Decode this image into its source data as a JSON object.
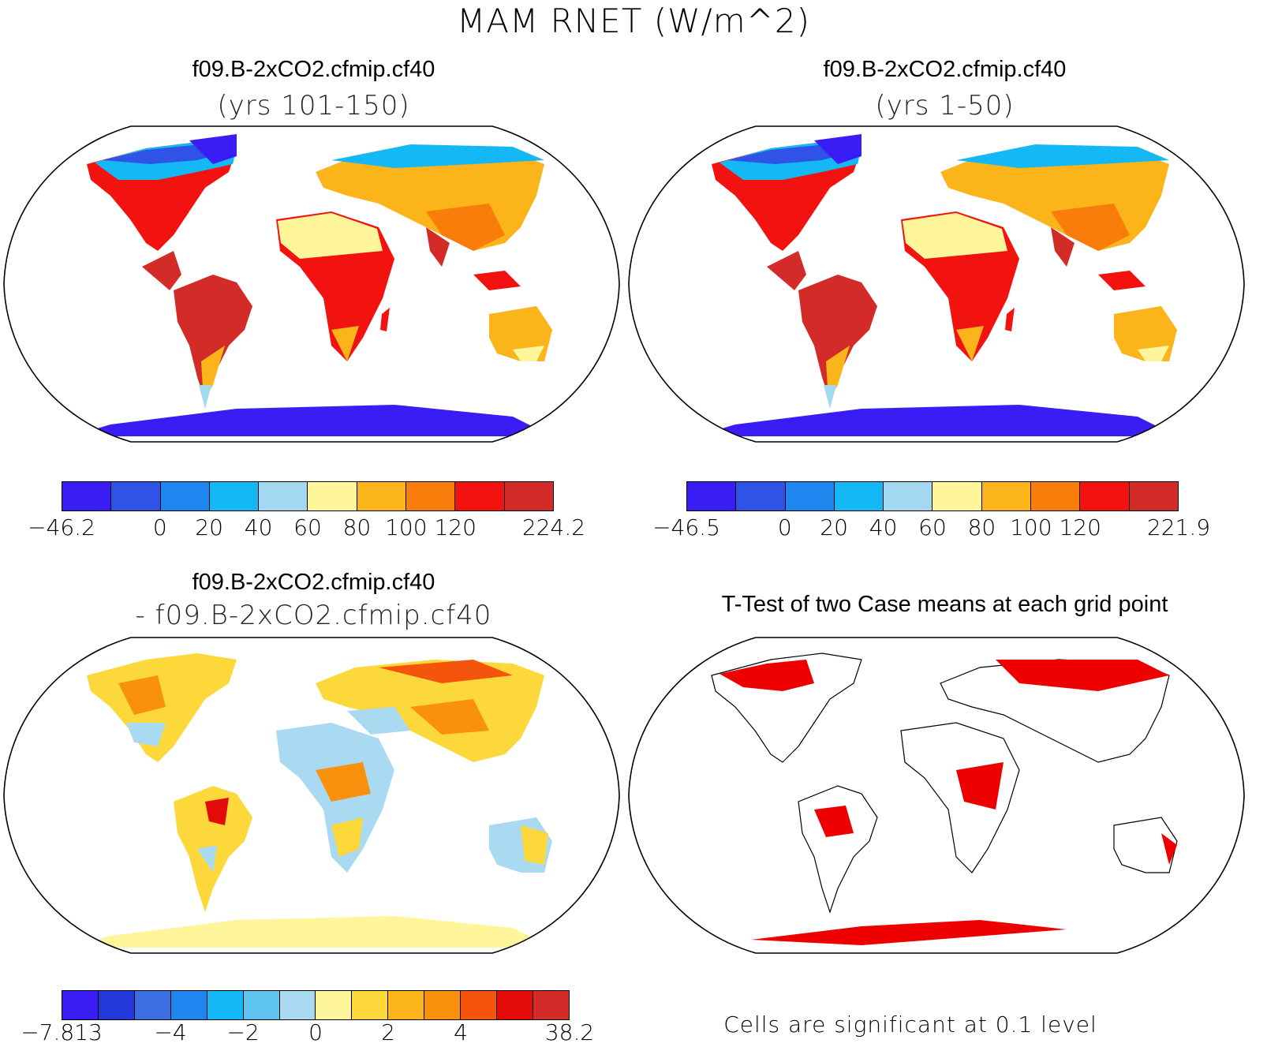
{
  "figure_title": "MAM RNET (W/m^2)",
  "panels": [
    {
      "title": "f09.B-2xCO2.cfmip.cf40",
      "subtitle": "(yrs 101-150)",
      "kind": "abs"
    },
    {
      "title": "f09.B-2xCO2.cfmip.cf40",
      "subtitle": "(yrs 1-50)",
      "kind": "abs"
    },
    {
      "title": "f09.B-2xCO2.cfmip.cf40",
      "subtitle": "- f09.B-2xCO2.cfmip.cf40",
      "kind": "diff"
    },
    {
      "title": "T-Test of two Case means at each grid point",
      "subtitle": "",
      "kind": "ttest"
    }
  ],
  "colorbars": [
    {
      "colors": [
        "#3a1cf5",
        "#2f53e6",
        "#1f86f0",
        "#14b8f5",
        "#a3d8f0",
        "#fff59a",
        "#fbb51a",
        "#f97d0a",
        "#f2120f",
        "#d22b28"
      ],
      "labels": [
        "-46.2",
        "0",
        "20",
        "40",
        "60",
        "80",
        "100",
        "120",
        "224.2"
      ],
      "label_boundaries": [
        0,
        2,
        3,
        4,
        5,
        6,
        7,
        8,
        10
      ]
    },
    {
      "colors": [
        "#3a1cf5",
        "#2f53e6",
        "#1f86f0",
        "#14b8f5",
        "#a3d8f0",
        "#fff59a",
        "#fbb51a",
        "#f97d0a",
        "#f2120f",
        "#d22b28"
      ],
      "labels": [
        "-46.5",
        "0",
        "20",
        "40",
        "60",
        "80",
        "100",
        "120",
        "221.9"
      ],
      "label_boundaries": [
        0,
        2,
        3,
        4,
        5,
        6,
        7,
        8,
        10
      ]
    },
    {
      "colors": [
        "#3a1cf5",
        "#2438d8",
        "#3b6ee0",
        "#1f86f0",
        "#14b8f5",
        "#5fc3f0",
        "#a9daf2",
        "#fff59a",
        "#fcd83a",
        "#fbb51a",
        "#f9900e",
        "#f5540c",
        "#e30a0a",
        "#d22b28"
      ],
      "labels": [
        "-7.813",
        "-4",
        "-2",
        "0",
        "2",
        "4",
        "38.2"
      ],
      "label_boundaries": [
        0,
        3,
        5,
        7,
        9,
        11,
        14
      ]
    }
  ],
  "ttest_note": "Cells are significant at 0.1 level",
  "ttest_color": "#ee0000"
}
